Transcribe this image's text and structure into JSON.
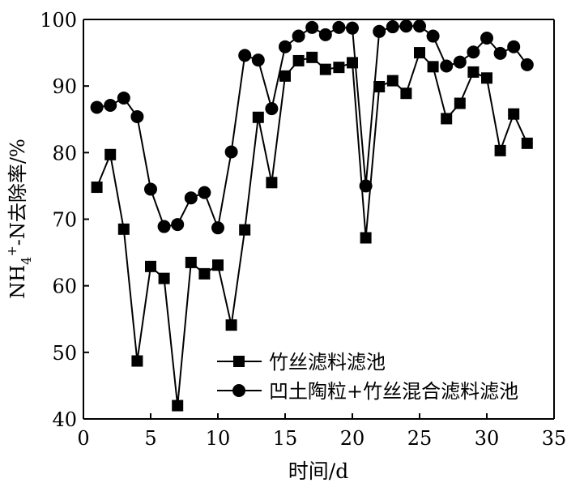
{
  "chart_data": {
    "type": "line",
    "title": "",
    "xlabel": "时间/d",
    "ylabel": "NH4+-N去除率/%",
    "ylabel_parts": {
      "main": "NH",
      "sub": "4",
      "sup": "+",
      "rest": "-N去除率/%"
    },
    "xlim": [
      0,
      35
    ],
    "ylim": [
      40,
      100
    ],
    "xticks": [
      0,
      5,
      10,
      15,
      20,
      25,
      30,
      35
    ],
    "yticks": [
      40,
      50,
      60,
      70,
      80,
      90,
      100
    ],
    "grid": false,
    "legend_position": "bottom-right",
    "x": [
      1,
      2,
      3,
      4,
      5,
      6,
      7,
      8,
      9,
      10,
      11,
      12,
      13,
      14,
      15,
      16,
      17,
      18,
      19,
      20,
      21,
      22,
      23,
      24,
      25,
      26,
      27,
      28,
      29,
      30,
      31,
      32,
      33
    ],
    "series": [
      {
        "name": "竹丝滤料滤池",
        "marker": "square",
        "values": [
          74.8,
          79.7,
          68.5,
          48.7,
          62.9,
          61.1,
          42.0,
          63.5,
          61.8,
          63.1,
          54.1,
          68.4,
          85.3,
          75.5,
          91.5,
          93.8,
          94.3,
          92.5,
          92.8,
          93.5,
          67.2,
          89.9,
          90.8,
          88.9,
          95.0,
          92.9,
          85.1,
          87.4,
          92.1,
          91.2,
          80.3,
          85.8,
          81.4
        ]
      },
      {
        "name": "凹土陶粒+竹丝混合滤料滤池",
        "marker": "circle",
        "values": [
          86.8,
          87.1,
          88.2,
          85.4,
          74.5,
          68.9,
          69.2,
          73.2,
          74.0,
          68.7,
          80.1,
          94.6,
          93.9,
          86.6,
          95.9,
          97.5,
          98.8,
          97.7,
          98.8,
          98.7,
          75.0,
          98.2,
          98.9,
          99.0,
          99.0,
          97.5,
          93.0,
          93.6,
          95.1,
          97.2,
          94.9,
          95.9,
          93.2
        ]
      }
    ]
  }
}
